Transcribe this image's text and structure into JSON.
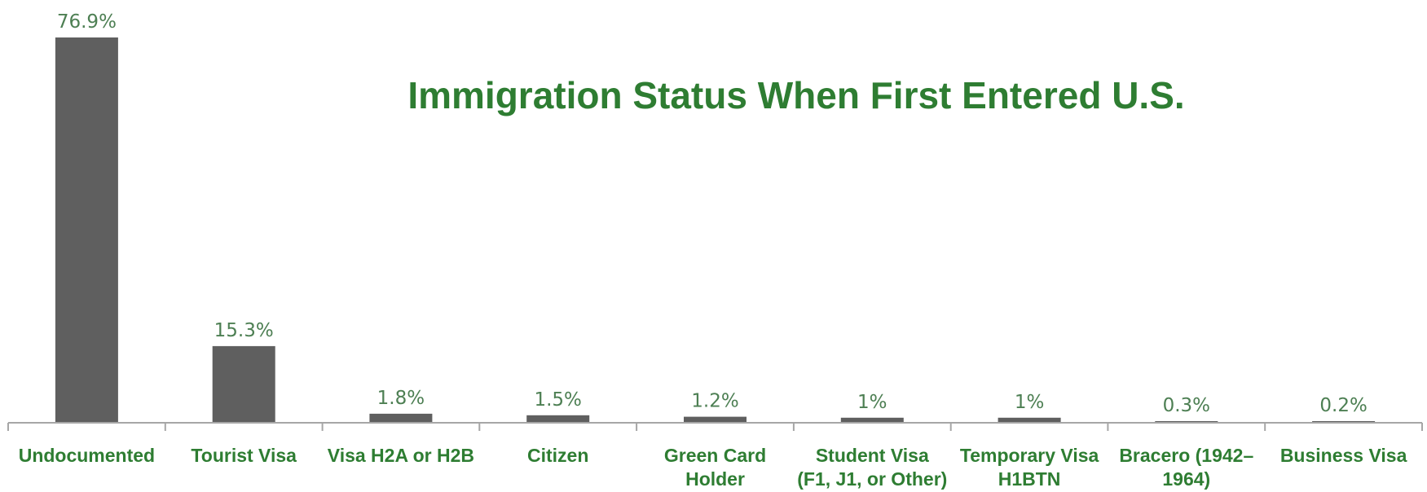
{
  "chart_data": {
    "type": "bar",
    "title": "Immigration Status When First Entered U.S.",
    "xlabel": "",
    "ylabel": "",
    "ylim": [
      0,
      80
    ],
    "grid": false,
    "legend": "none",
    "categories": [
      "Undocumented",
      "Tourist Visa",
      "Visa H2A or H2B",
      "Citizen",
      "Green Card Holder",
      "Student Visa (F1, J1, or Other)",
      "Temporary Visa H1BTN",
      "Bracero (1942–1964)",
      "Business Visa"
    ],
    "category_label_lines": [
      [
        "Undocumented"
      ],
      [
        "Tourist Visa"
      ],
      [
        "Visa H2A or H2B"
      ],
      [
        "Citizen"
      ],
      [
        "Green Card",
        "Holder"
      ],
      [
        "Student Visa",
        "(F1, J1, or Other)"
      ],
      [
        "Temporary Visa",
        "H1BTN"
      ],
      [
        "Bracero    (1942–",
        "1964)"
      ],
      [
        "Business Visa"
      ]
    ],
    "values": [
      76.9,
      15.3,
      1.8,
      1.5,
      1.2,
      1,
      1,
      0.3,
      0.2
    ],
    "value_labels": [
      "76.9%",
      "15.3%",
      "1.8%",
      "1.5%",
      "1.2%",
      "1%",
      "1%",
      "0.3%",
      "0.2%"
    ],
    "colors": {
      "bar": "#5f5f5f",
      "axis": "#a6a6a6",
      "title": "#2e7d32",
      "category_text": "#2e7d32",
      "value_text": "#4d7f53"
    }
  }
}
